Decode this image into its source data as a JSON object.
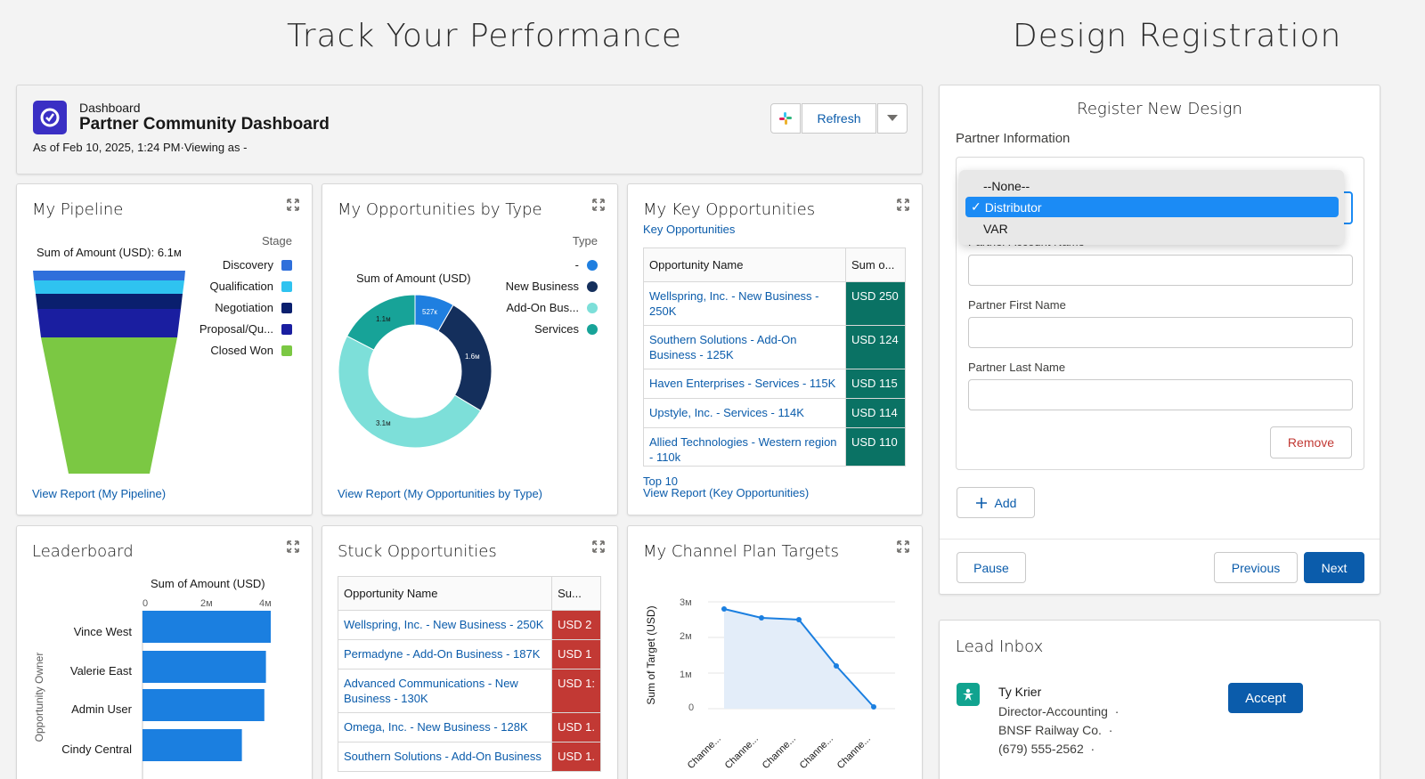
{
  "headings": {
    "left": "Track Your Performance",
    "right": "Design Registration"
  },
  "dashboard": {
    "label": "Dashboard",
    "title": "Partner Community Dashboard",
    "subtitle": "As of Feb 10, 2025, 1:24 PM·Viewing as -",
    "refresh_label": "Refresh",
    "icon_color": "#3a2fc4"
  },
  "pipeline": {
    "title": "My Pipeline",
    "sum_label": "Sum of Amount (USD): 6.1м",
    "legend_title": "Stage",
    "legend": [
      {
        "label": "Discovery",
        "color": "#2f6fdb"
      },
      {
        "label": "Qualification",
        "color": "#2fc3f0"
      },
      {
        "label": "Negotiation",
        "color": "#0a1f6e"
      },
      {
        "label": "Proposal/Qu...",
        "color": "#1a1ea0"
      },
      {
        "label": "Closed Won",
        "color": "#7bc843"
      }
    ],
    "link": "View Report (My Pipeline)"
  },
  "opps_by_type": {
    "title": "My Opportunities by Type",
    "sum_label": "Sum of Amount (USD)",
    "legend_title": "Type",
    "legend": [
      {
        "label": "-",
        "color": "#1f7fe0"
      },
      {
        "label": "New Business",
        "color": "#142f5c"
      },
      {
        "label": "Add-On Bus...",
        "color": "#7ddfd9"
      },
      {
        "label": "Services",
        "color": "#17a398"
      }
    ],
    "slice_labels": {
      "a": "527к",
      "b": "1.6м",
      "c": "3.1м",
      "d": "1.1м"
    },
    "link": "View Report (My Opportunities by Type)"
  },
  "chart_data": [
    {
      "type": "pie",
      "title": "My Opportunities by Type",
      "categories": [
        "-",
        "New Business",
        "Add-On Bus...",
        "Services"
      ],
      "values": [
        0.527,
        1.6,
        3.1,
        1.1
      ],
      "unit": "M USD"
    },
    {
      "type": "bar",
      "title": "Leaderboard",
      "orientation": "horizontal",
      "xlabel": "Sum of Amount (USD)",
      "ylabel": "Opportunity Owner",
      "categories": [
        "Vince West",
        "Valerie East",
        "Admin User",
        "Cindy Central"
      ],
      "values": [
        4.0,
        3.85,
        3.8,
        3.1
      ],
      "xlim": [
        0,
        4
      ],
      "xticks": [
        "0",
        "2м",
        "4м"
      ]
    },
    {
      "type": "line",
      "title": "My Channel Plan Targets",
      "ylabel": "Sum of Target (USD)",
      "categories": [
        "Channe...",
        "Channe...",
        "Channe...",
        "Channe...",
        "Channe..."
      ],
      "values": [
        2.8,
        2.55,
        2.5,
        1.2,
        0.05
      ],
      "ylim": [
        0,
        3
      ],
      "yticks": [
        "0",
        "1м",
        "2м",
        "3м"
      ]
    }
  ],
  "key_opps": {
    "title": "My Key Opportunities",
    "subtitle": "Key Opportunities",
    "col_name": "Opportunity Name",
    "col_sum": "Sum o...",
    "rows": [
      {
        "name": "Wellspring, Inc. - New Business - 250K",
        "value": "USD 250"
      },
      {
        "name": "Southern Solutions - Add-On Business - 125K",
        "value": "USD 124"
      },
      {
        "name": "Haven Enterprises - Services - 115K",
        "value": "USD 115"
      },
      {
        "name": "Upstyle, Inc. - Services - 114K",
        "value": "USD 114"
      },
      {
        "name": "Allied Technologies - Western region - 110k",
        "value": "USD 110"
      }
    ],
    "footer": "Top 10",
    "link": "View Report (Key Opportunities)"
  },
  "leaderboard": {
    "title": "Leaderboard",
    "axis_title": "Sum of Amount (USD)",
    "y_title": "Opportunity Owner",
    "ticks": [
      "0",
      "2м",
      "4м"
    ],
    "owners": [
      "Vince West",
      "Valerie East",
      "Admin User",
      "Cindy Central"
    ]
  },
  "stuck": {
    "title": "Stuck Opportunities",
    "col_name": "Opportunity Name",
    "col_sum": "Su...",
    "rows": [
      {
        "name": "Wellspring, Inc. - New Business - 250K",
        "value": "USD 2"
      },
      {
        "name": "Permadyne - Add-On Business - 187K",
        "value": "USD 1"
      },
      {
        "name": "Advanced Communications - New Business - 130K",
        "value": "USD 1:"
      },
      {
        "name": "Omega, Inc. - New Business - 128K",
        "value": "USD 1."
      },
      {
        "name": "Southern Solutions - Add-On Business",
        "value": "USD 1."
      }
    ]
  },
  "channel": {
    "title": "My Channel Plan Targets",
    "y_title": "Sum of Target (USD)",
    "ticks": [
      "3м",
      "2м",
      "1м",
      "0"
    ],
    "x_labels": [
      "Channe...",
      "Channe...",
      "Channe...",
      "Channe...",
      "Channe..."
    ]
  },
  "register": {
    "title": "Register New Design",
    "section": "Partner Information",
    "dropdown_options": [
      "--None--",
      "Distributor",
      "VAR"
    ],
    "selected": "Distributor",
    "partial_label": "Partner Account Name",
    "first_name_label": "Partner First Name",
    "last_name_label": "Partner Last Name",
    "remove_label": "Remove",
    "add_label": "Add",
    "pause_label": "Pause",
    "previous_label": "Previous",
    "next_label": "Next"
  },
  "lead_inbox": {
    "title": "Lead Inbox",
    "name": "Ty Krier",
    "role": "Director-Accounting",
    "company": "BNSF Railway Co.",
    "phone": "(679) 555-2562",
    "accept_label": "Accept"
  },
  "colors": {
    "brand_blue": "#0b5cab",
    "green_cell": "#0a7264",
    "red_cell": "#c23934",
    "bar_blue": "#1b7fe0",
    "select_blue": "#1b8bf5"
  }
}
